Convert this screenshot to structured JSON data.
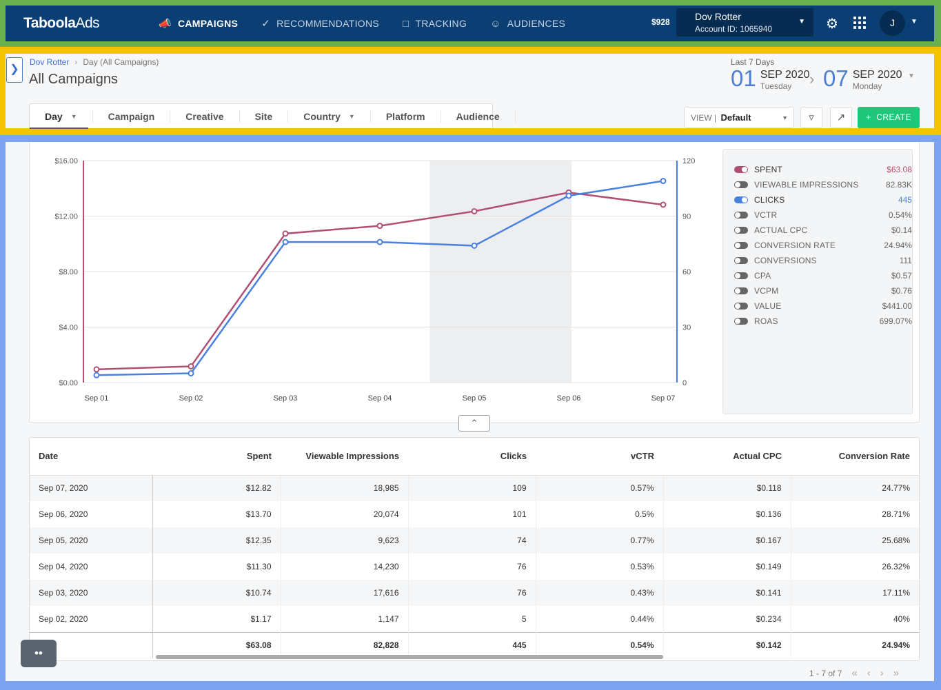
{
  "nav": {
    "logo_main": "Taboola",
    "logo_sub": "Ads",
    "items": [
      {
        "label": "CAMPAIGNS",
        "icon": "megaphone-icon",
        "active": true
      },
      {
        "label": "RECOMMENDATIONS",
        "icon": "check-circle-icon",
        "active": false
      },
      {
        "label": "TRACKING",
        "icon": "tracking-icon",
        "active": false
      },
      {
        "label": "AUDIENCES",
        "icon": "person-icon",
        "active": false
      }
    ],
    "balance": "$928",
    "account_name": "Dov Rotter",
    "account_id": "Account ID: 1065940",
    "avatar_letter": "J"
  },
  "header": {
    "breadcrumb_root": "Dov Rotter",
    "breadcrumb_current": "Day (All Campaigns)",
    "title": "All Campaigns",
    "range_label": "Last 7 Days",
    "from": {
      "day": "01",
      "month": "SEP 2020",
      "weekday": "Tuesday"
    },
    "to": {
      "day": "07",
      "month": "SEP 2020",
      "weekday": "Monday"
    },
    "tabs": [
      "Day",
      "Campaign",
      "Creative",
      "Site",
      "Country",
      "Platform",
      "Audience"
    ],
    "view_label": "VIEW",
    "view_value": "Default",
    "create_label": "CREATE"
  },
  "legend": [
    {
      "label": "SPENT",
      "value": "$63.08",
      "on": true,
      "color": "#b04f72"
    },
    {
      "label": "VIEWABLE IMPRESSIONS",
      "value": "82.83K",
      "on": false,
      "color": "#666666"
    },
    {
      "label": "CLICKS",
      "value": "445",
      "on": true,
      "color": "#4a80e0"
    },
    {
      "label": "VCTR",
      "value": "0.54%",
      "on": false,
      "color": "#666666"
    },
    {
      "label": "ACTUAL CPC",
      "value": "$0.14",
      "on": false,
      "color": "#666666"
    },
    {
      "label": "CONVERSION RATE",
      "value": "24.94%",
      "on": false,
      "color": "#666666"
    },
    {
      "label": "CONVERSIONS",
      "value": "111",
      "on": false,
      "color": "#666666"
    },
    {
      "label": "CPA",
      "value": "$0.57",
      "on": false,
      "color": "#666666"
    },
    {
      "label": "VCPM",
      "value": "$0.76",
      "on": false,
      "color": "#666666"
    },
    {
      "label": "VALUE",
      "value": "$441.00",
      "on": false,
      "color": "#666666"
    },
    {
      "label": "ROAS",
      "value": "699.07%",
      "on": false,
      "color": "#666666"
    }
  ],
  "chart_data": {
    "type": "line",
    "categories": [
      "Sep 01",
      "Sep 02",
      "Sep 03",
      "Sep 04",
      "Sep 05",
      "Sep 06",
      "Sep 07"
    ],
    "y_left_ticks": [
      "$0.00",
      "$4.00",
      "$8.00",
      "$12.00",
      "$16.00"
    ],
    "y_right_ticks": [
      "0",
      "30",
      "60",
      "90",
      "120"
    ],
    "ylim_left": [
      0,
      16
    ],
    "ylim_right": [
      0,
      120
    ],
    "highlight_range": [
      "Sep 05",
      "Sep 06"
    ],
    "series": [
      {
        "name": "SPENT",
        "axis": "left",
        "color": "#b04f72",
        "values": [
          0.95,
          1.17,
          10.74,
          11.3,
          12.35,
          13.7,
          12.82
        ]
      },
      {
        "name": "CLICKS",
        "axis": "right",
        "color": "#4a80e0",
        "values": [
          4,
          5,
          76,
          76,
          74,
          101,
          109
        ]
      }
    ]
  },
  "table": {
    "columns": [
      "Date",
      "Spent",
      "Viewable Impressions",
      "Clicks",
      "vCTR",
      "Actual CPC",
      "Conversion Rate"
    ],
    "rows": [
      [
        "Sep 07, 2020",
        "$12.82",
        "18,985",
        "109",
        "0.57%",
        "$0.118",
        "24.77%"
      ],
      [
        "Sep 06, 2020",
        "$13.70",
        "20,074",
        "101",
        "0.5%",
        "$0.136",
        "28.71%"
      ],
      [
        "Sep 05, 2020",
        "$12.35",
        "9,623",
        "74",
        "0.77%",
        "$0.167",
        "25.68%"
      ],
      [
        "Sep 04, 2020",
        "$11.30",
        "14,230",
        "76",
        "0.53%",
        "$0.149",
        "26.32%"
      ],
      [
        "Sep 03, 2020",
        "$10.74",
        "17,616",
        "76",
        "0.43%",
        "$0.141",
        "17.11%"
      ],
      [
        "Sep 02, 2020",
        "$1.17",
        "1,147",
        "5",
        "0.44%",
        "$0.234",
        "40%"
      ]
    ],
    "totals": [
      "",
      "$63.08",
      "82,828",
      "445",
      "0.54%",
      "$0.142",
      "24.94%"
    ]
  },
  "pager": {
    "range": "1 - 7",
    "of": "of 7"
  }
}
